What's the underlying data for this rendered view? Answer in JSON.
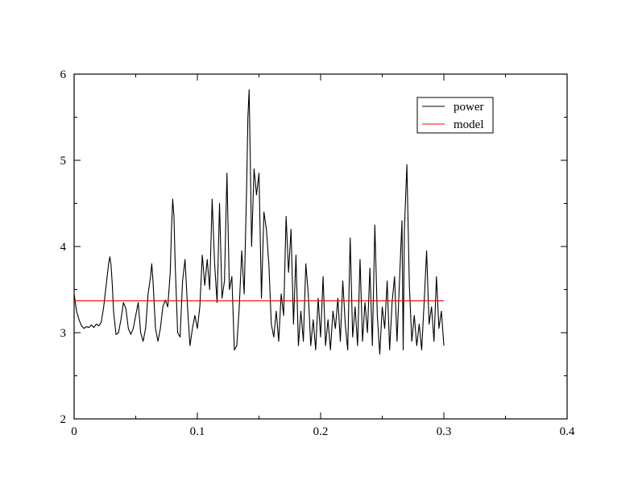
{
  "chart_data": {
    "type": "line",
    "title": "",
    "xlabel": "",
    "ylabel": "",
    "xlim": [
      0,
      0.4
    ],
    "ylim": [
      2,
      6
    ],
    "x_ticks": [
      {
        "value": 0,
        "label": "0"
      },
      {
        "value": 0.1,
        "label": "0.1"
      },
      {
        "value": 0.2,
        "label": "0.2"
      },
      {
        "value": 0.3,
        "label": "0.3"
      },
      {
        "value": 0.4,
        "label": "0.4"
      }
    ],
    "y_ticks": [
      {
        "value": 2,
        "label": "2"
      },
      {
        "value": 3,
        "label": "3"
      },
      {
        "value": 4,
        "label": "4"
      },
      {
        "value": 5,
        "label": "5"
      },
      {
        "value": 6,
        "label": "6"
      }
    ],
    "x_minor_step": 0.05,
    "y_minor_step": 0.5,
    "grid": false,
    "legend_position": "top-right",
    "series": [
      {
        "name": "power",
        "color": "#000000",
        "x": [
          0.0,
          0.002,
          0.004,
          0.006,
          0.008,
          0.01,
          0.012,
          0.014,
          0.016,
          0.018,
          0.02,
          0.022,
          0.024,
          0.026,
          0.028,
          0.029,
          0.03,
          0.031,
          0.032,
          0.034,
          0.036,
          0.038,
          0.04,
          0.042,
          0.044,
          0.046,
          0.048,
          0.05,
          0.052,
          0.054,
          0.056,
          0.058,
          0.06,
          0.062,
          0.063,
          0.064,
          0.066,
          0.068,
          0.07,
          0.072,
          0.074,
          0.076,
          0.078,
          0.079,
          0.08,
          0.081,
          0.082,
          0.084,
          0.086,
          0.088,
          0.09,
          0.092,
          0.094,
          0.096,
          0.098,
          0.1,
          0.102,
          0.104,
          0.106,
          0.108,
          0.11,
          0.112,
          0.114,
          0.116,
          0.118,
          0.12,
          0.122,
          0.124,
          0.126,
          0.128,
          0.13,
          0.132,
          0.134,
          0.136,
          0.138,
          0.14,
          0.141,
          0.142,
          0.143,
          0.144,
          0.146,
          0.148,
          0.15,
          0.152,
          0.154,
          0.156,
          0.158,
          0.16,
          0.162,
          0.164,
          0.166,
          0.168,
          0.17,
          0.172,
          0.174,
          0.176,
          0.178,
          0.18,
          0.182,
          0.184,
          0.186,
          0.188,
          0.19,
          0.192,
          0.194,
          0.196,
          0.198,
          0.2,
          0.202,
          0.204,
          0.206,
          0.208,
          0.21,
          0.212,
          0.214,
          0.216,
          0.218,
          0.22,
          0.222,
          0.224,
          0.226,
          0.228,
          0.23,
          0.232,
          0.234,
          0.236,
          0.238,
          0.24,
          0.242,
          0.244,
          0.246,
          0.248,
          0.25,
          0.252,
          0.254,
          0.256,
          0.258,
          0.26,
          0.262,
          0.264,
          0.266,
          0.267,
          0.268,
          0.27,
          0.272,
          0.274,
          0.276,
          0.278,
          0.28,
          0.282,
          0.284,
          0.286,
          0.288,
          0.29,
          0.292,
          0.294,
          0.296,
          0.298,
          0.3
        ],
        "values": [
          3.45,
          3.25,
          3.15,
          3.08,
          3.05,
          3.07,
          3.06,
          3.09,
          3.06,
          3.1,
          3.08,
          3.12,
          3.3,
          3.55,
          3.8,
          3.88,
          3.78,
          3.55,
          3.25,
          2.98,
          3.0,
          3.15,
          3.35,
          3.28,
          3.05,
          2.98,
          3.05,
          3.2,
          3.35,
          3.0,
          2.9,
          3.05,
          3.45,
          3.65,
          3.8,
          3.6,
          3.05,
          2.9,
          3.05,
          3.3,
          3.38,
          3.3,
          3.7,
          4.2,
          4.55,
          4.35,
          3.8,
          3.0,
          2.95,
          3.6,
          3.85,
          3.3,
          2.85,
          3.05,
          3.2,
          3.05,
          3.3,
          3.9,
          3.55,
          3.85,
          3.5,
          4.55,
          3.8,
          3.35,
          4.5,
          3.4,
          3.6,
          4.85,
          3.5,
          3.65,
          2.8,
          2.85,
          3.3,
          3.95,
          3.45,
          4.7,
          5.5,
          5.82,
          4.95,
          4.0,
          4.9,
          4.6,
          4.85,
          3.4,
          4.4,
          4.2,
          3.8,
          3.1,
          2.95,
          3.25,
          2.9,
          3.45,
          3.2,
          4.35,
          3.7,
          4.2,
          3.1,
          3.9,
          2.85,
          3.25,
          2.9,
          3.8,
          3.45,
          2.85,
          3.15,
          2.8,
          3.4,
          2.95,
          3.65,
          2.85,
          3.15,
          2.8,
          3.25,
          3.05,
          3.4,
          2.9,
          3.6,
          3.1,
          2.8,
          4.1,
          2.95,
          3.3,
          2.85,
          3.85,
          2.9,
          3.35,
          3.0,
          3.75,
          2.85,
          4.25,
          3.2,
          2.75,
          3.3,
          3.05,
          3.6,
          2.8,
          3.35,
          3.65,
          2.9,
          3.6,
          4.3,
          2.8,
          4.2,
          4.95,
          3.55,
          2.9,
          3.2,
          2.85,
          3.1,
          2.8,
          3.35,
          3.95,
          3.1,
          3.3,
          2.9,
          3.65,
          3.05,
          3.25,
          2.85
        ]
      },
      {
        "name": "model",
        "color": "#ff0000",
        "x": [
          0.0,
          0.3
        ],
        "values": [
          3.37,
          3.37
        ]
      }
    ]
  }
}
